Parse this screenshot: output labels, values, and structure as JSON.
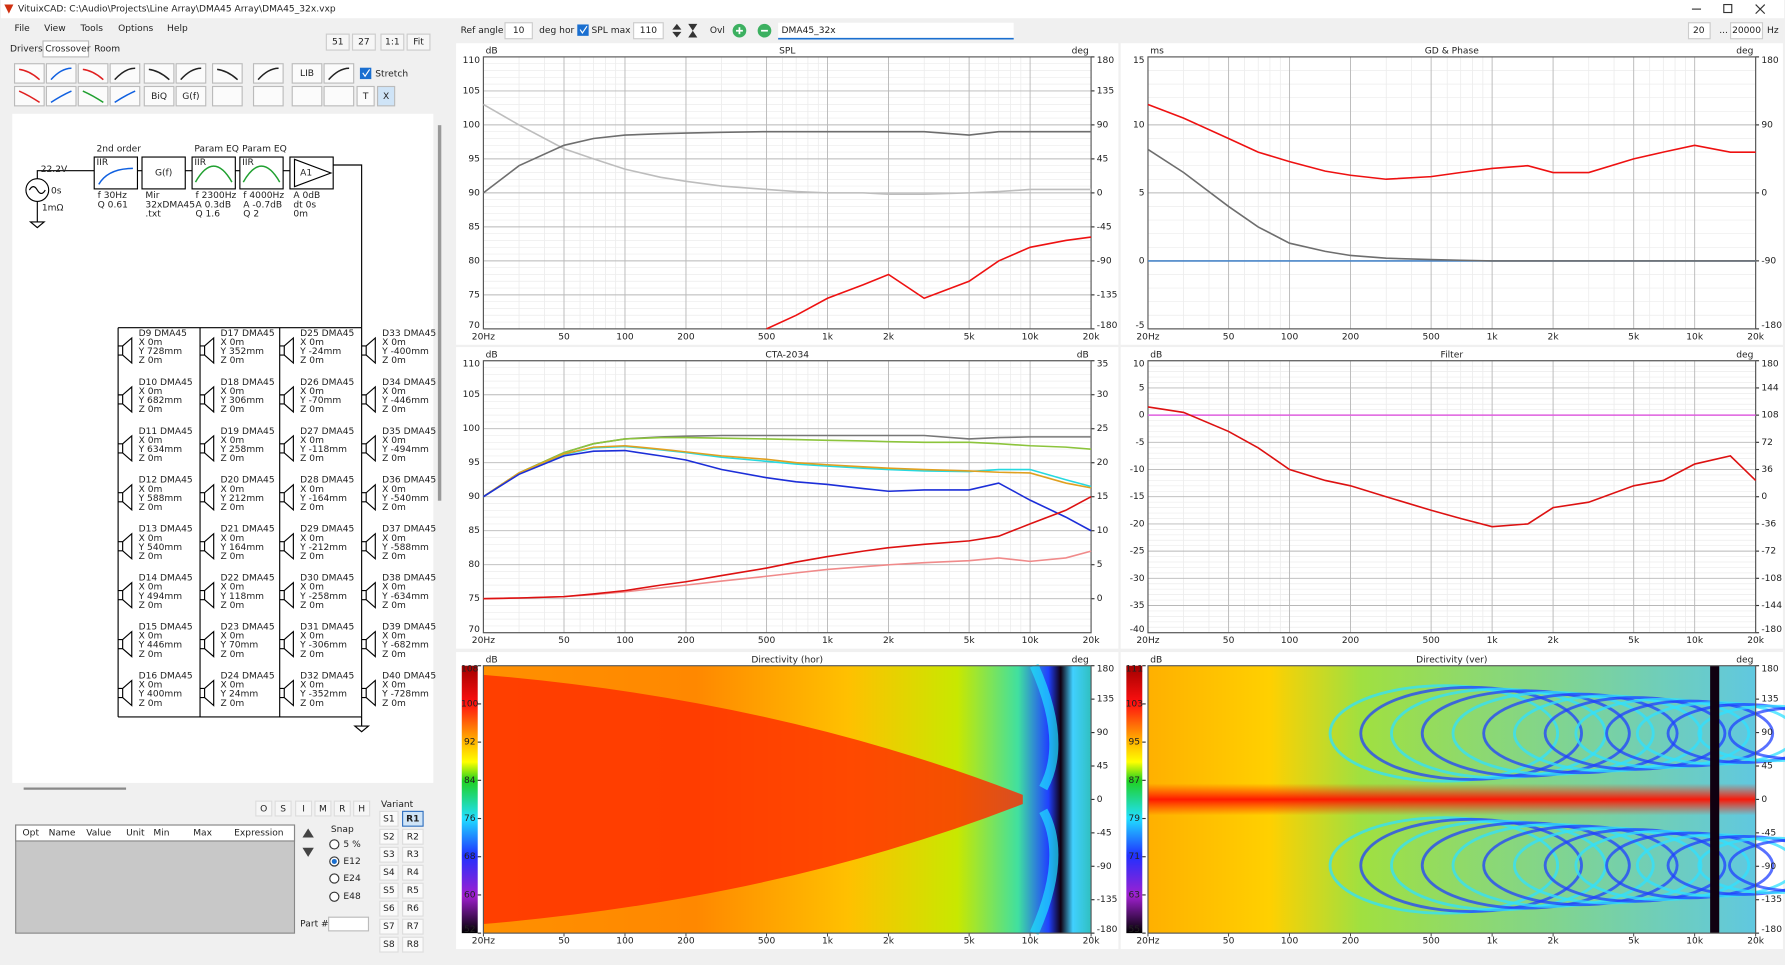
{
  "window": {
    "title": "VituixCAD: C:\\Audio\\Projects\\Line Array\\DMA45 Array\\DMA45_32x.vxp",
    "menu": [
      "File",
      "View",
      "Tools",
      "Options",
      "Help"
    ]
  },
  "left_panel": {
    "tabs": [
      "Drivers",
      "Crossover",
      "Room"
    ],
    "zoom_buttons": [
      "51",
      "27",
      "1:1",
      "Fit"
    ],
    "toolbar_labels": {
      "lib": "LIB",
      "biq": "BiQ",
      "gf": "G(f)",
      "t": "T",
      "x": "X"
    },
    "stretch": "Stretch",
    "source": {
      "voltage": "22.2V",
      "delay": "0s",
      "resistance": "1mΩ"
    },
    "blocks": [
      {
        "title": "2nd order",
        "type": "IIR",
        "params": [
          "f  30Hz",
          "Q  0.61"
        ]
      },
      {
        "type": "G(f)",
        "params": [
          "Mir",
          "32xDMA45",
          ".txt"
        ]
      },
      {
        "title": "Param EQ",
        "type": "IIR",
        "params": [
          "f  2300Hz",
          "A  0.3dB",
          "Q  1.6"
        ]
      },
      {
        "title": "Param EQ",
        "type": "IIR",
        "params": [
          "f  4000Hz",
          "A  -0.7dB",
          "Q  2"
        ]
      },
      {
        "type": "A1",
        "params": [
          "A  0dB",
          "dt 0s",
          "0m"
        ]
      }
    ],
    "drivers": [
      {
        "name": "D9 DMA45",
        "x": "X 0m",
        "y": "Y 728mm",
        "z": "Z 0m"
      },
      {
        "name": "D10 DMA45",
        "x": "X 0m",
        "y": "Y 682mm",
        "z": "Z 0m"
      },
      {
        "name": "D11 DMA45",
        "x": "X 0m",
        "y": "Y 634mm",
        "z": "Z 0m"
      },
      {
        "name": "D12 DMA45",
        "x": "X 0m",
        "y": "Y 588mm",
        "z": "Z 0m"
      },
      {
        "name": "D13 DMA45",
        "x": "X 0m",
        "y": "Y 540mm",
        "z": "Z 0m"
      },
      {
        "name": "D14 DMA45",
        "x": "X 0m",
        "y": "Y 494mm",
        "z": "Z 0m"
      },
      {
        "name": "D15 DMA45",
        "x": "X 0m",
        "y": "Y 446mm",
        "z": "Z 0m"
      },
      {
        "name": "D16 DMA45",
        "x": "X 0m",
        "y": "Y 400mm",
        "z": "Z 0m"
      },
      {
        "name": "D17 DMA45",
        "x": "X 0m",
        "y": "Y 352mm",
        "z": "Z 0m"
      },
      {
        "name": "D18 DMA45",
        "x": "X 0m",
        "y": "Y 306mm",
        "z": "Z 0m"
      },
      {
        "name": "D19 DMA45",
        "x": "X 0m",
        "y": "Y 258mm",
        "z": "Z 0m"
      },
      {
        "name": "D20 DMA45",
        "x": "X 0m",
        "y": "Y 212mm",
        "z": "Z 0m"
      },
      {
        "name": "D21 DMA45",
        "x": "X 0m",
        "y": "Y 164mm",
        "z": "Z 0m"
      },
      {
        "name": "D22 DMA45",
        "x": "X 0m",
        "y": "Y 118mm",
        "z": "Z 0m"
      },
      {
        "name": "D23 DMA45",
        "x": "X 0m",
        "y": "Y 70mm",
        "z": "Z 0m"
      },
      {
        "name": "D24 DMA45",
        "x": "X 0m",
        "y": "Y 24mm",
        "z": "Z 0m"
      },
      {
        "name": "D25 DMA45",
        "x": "X 0m",
        "y": "Y -24mm",
        "z": "Z 0m"
      },
      {
        "name": "D26 DMA45",
        "x": "X 0m",
        "y": "Y -70mm",
        "z": "Z 0m"
      },
      {
        "name": "D27 DMA45",
        "x": "X 0m",
        "y": "Y -118mm",
        "z": "Z 0m"
      },
      {
        "name": "D28 DMA45",
        "x": "X 0m",
        "y": "Y -164mm",
        "z": "Z 0m"
      },
      {
        "name": "D29 DMA45",
        "x": "X 0m",
        "y": "Y -212mm",
        "z": "Z 0m"
      },
      {
        "name": "D30 DMA45",
        "x": "X 0m",
        "y": "Y -258mm",
        "z": "Z 0m"
      },
      {
        "name": "D31 DMA45",
        "x": "X 0m",
        "y": "Y -306mm",
        "z": "Z 0m"
      },
      {
        "name": "D32 DMA45",
        "x": "X 0m",
        "y": "Y -352mm",
        "z": "Z 0m"
      },
      {
        "name": "D33 DMA45",
        "x": "X 0m",
        "y": "Y -400mm",
        "z": "Z 0m"
      },
      {
        "name": "D34 DMA45",
        "x": "X 0m",
        "y": "Y -446mm",
        "z": "Z 0m"
      },
      {
        "name": "D35 DMA45",
        "x": "X 0m",
        "y": "Y -494mm",
        "z": "Z 0m"
      },
      {
        "name": "D36 DMA45",
        "x": "X 0m",
        "y": "Y -540mm",
        "z": "Z 0m"
      },
      {
        "name": "D37 DMA45",
        "x": "X 0m",
        "y": "Y -588mm",
        "z": "Z 0m"
      },
      {
        "name": "D38 DMA45",
        "x": "X 0m",
        "y": "Y -634mm",
        "z": "Z 0m"
      },
      {
        "name": "D39 DMA45",
        "x": "X 0m",
        "y": "Y -682mm",
        "z": "Z 0m"
      },
      {
        "name": "D40 DMA45",
        "x": "X 0m",
        "y": "Y -728mm",
        "z": "Z 0m"
      }
    ],
    "param_buttons": [
      "O",
      "S",
      "I",
      "M",
      "R",
      "H"
    ],
    "param_columns": [
      "Opt",
      "Name",
      "Value",
      "Unit",
      "Min",
      "Max",
      "Expression"
    ],
    "snap": {
      "label": "Snap",
      "options": [
        "5 %",
        "E12",
        "E24",
        "E48"
      ],
      "selected": 1
    },
    "part_label": "Part #",
    "variant": {
      "label": "Variant",
      "s": [
        "S1",
        "S2",
        "S3",
        "S4",
        "S5",
        "S6",
        "S7",
        "S8"
      ],
      "r": [
        "R1",
        "R2",
        "R3",
        "R4",
        "R5",
        "R6",
        "R7",
        "R8"
      ],
      "selected": 0
    }
  },
  "top_bar": {
    "ref_angle_label": "Ref angle",
    "ref_angle": "10",
    "deg_hor": "deg hor",
    "spl_max_label": "SPL max",
    "spl_max": "110",
    "ovl": "Ovl",
    "project": "DMA45_32x",
    "freq_min": "20",
    "ellipsis": "...",
    "freq_max": "20000",
    "hz": "Hz"
  },
  "plots": [
    {
      "type": "line",
      "title": "SPL",
      "y_unit": "dB",
      "y2_unit": "deg",
      "xlim": [
        20,
        20000
      ],
      "xticks": [
        {
          "value": 20,
          "label": "20Hz"
        },
        50,
        100,
        200,
        500,
        {
          "value": 1000,
          "label": "1k"
        },
        {
          "value": 2000,
          "label": "2k"
        },
        {
          "value": 5000,
          "label": "5k"
        },
        {
          "value": 10000,
          "label": "10k"
        },
        {
          "value": 20000,
          "label": "20k"
        }
      ],
      "ylim": [
        70,
        110
      ],
      "yticks": [
        110,
        105,
        100,
        95,
        90,
        85,
        80,
        75,
        70
      ],
      "y2lim": [
        -180,
        180
      ],
      "y2ticks": [
        180,
        135,
        90,
        45,
        0,
        -45,
        -90,
        -135,
        -180
      ],
      "x": [
        20,
        30,
        50,
        70,
        100,
        150,
        200,
        300,
        500,
        700,
        1000,
        1500,
        2000,
        3000,
        5000,
        7000,
        10000,
        15000,
        20000
      ],
      "series": [
        {
          "color": "#bdbdbd",
          "values": [
            103,
            100,
            96.5,
            95,
            93.5,
            92.3,
            91.7,
            91,
            90.5,
            90.2,
            90,
            90,
            89.8,
            89.8,
            90,
            90.2,
            90.5,
            90.5,
            90.5
          ]
        },
        {
          "color": "#6e6e6e",
          "values": [
            90,
            94,
            97,
            98,
            98.5,
            98.7,
            98.8,
            98.9,
            99,
            99,
            99,
            99,
            99,
            99,
            98.5,
            99,
            99,
            99,
            99
          ]
        },
        {
          "color": "#ee1111",
          "values": [
            null,
            null,
            null,
            null,
            null,
            null,
            null,
            null,
            70,
            72,
            74.5,
            76.5,
            78,
            74.5,
            77,
            80,
            82,
            83,
            83.5
          ]
        }
      ]
    },
    {
      "type": "line",
      "title": "GD & Phase",
      "y_unit": "ms",
      "y2_unit": "deg",
      "xlim": [
        20,
        20000
      ],
      "xticks": [
        {
          "value": 20,
          "label": "20Hz"
        },
        50,
        100,
        200,
        500,
        {
          "value": 1000,
          "label": "1k"
        },
        {
          "value": 2000,
          "label": "2k"
        },
        {
          "value": 5000,
          "label": "5k"
        },
        {
          "value": 10000,
          "label": "10k"
        },
        {
          "value": 20000,
          "label": "20k"
        }
      ],
      "ylim": [
        -5,
        15
      ],
      "yticks": [
        15,
        10,
        5,
        0,
        -5
      ],
      "y2lim": [
        -180,
        180
      ],
      "y2ticks": [
        180,
        90,
        0,
        -90,
        -180
      ],
      "x": [
        20,
        30,
        50,
        70,
        100,
        150,
        200,
        300,
        500,
        700,
        1000,
        1500,
        2000,
        3000,
        5000,
        7000,
        10000,
        15000,
        20000
      ],
      "series": [
        {
          "color": "#4a86c8",
          "values": [
            0,
            0,
            0,
            0,
            0,
            0,
            0,
            0,
            0,
            0,
            0,
            0,
            0,
            0,
            0,
            0,
            0,
            0,
            0
          ]
        },
        {
          "color": "#6e6e6e",
          "values": [
            8.2,
            6.5,
            4,
            2.5,
            1.3,
            0.7,
            0.4,
            0.2,
            0.1,
            0.05,
            0,
            0,
            0,
            0,
            0,
            0,
            0,
            0,
            0
          ]
        },
        {
          "color": "#ee1111",
          "values": [
            11.5,
            10.5,
            9,
            8,
            7.3,
            6.6,
            6.3,
            6,
            6.2,
            6.5,
            6.8,
            7,
            6.5,
            6.5,
            7.5,
            8,
            8.5,
            8,
            8
          ]
        }
      ]
    },
    {
      "type": "line",
      "title": "CTA-2034",
      "y_unit": "dB",
      "y2_unit": "dB",
      "xlim": [
        20,
        20000
      ],
      "xticks": [
        {
          "value": 20,
          "label": "20Hz"
        },
        50,
        100,
        200,
        500,
        {
          "value": 1000,
          "label": "1k"
        },
        {
          "value": 2000,
          "label": "2k"
        },
        {
          "value": 5000,
          "label": "5k"
        },
        {
          "value": 10000,
          "label": "10k"
        },
        {
          "value": 20000,
          "label": "20k"
        }
      ],
      "ylim": [
        70,
        110
      ],
      "yticks": [
        110,
        105,
        100,
        95,
        90,
        85,
        80,
        75,
        70
      ],
      "y2lim": [
        -5,
        35
      ],
      "y2ticks": [
        35,
        30,
        25,
        20,
        15,
        10,
        5,
        0
      ],
      "x": [
        20,
        30,
        50,
        70,
        100,
        150,
        200,
        300,
        500,
        700,
        1000,
        1500,
        2000,
        3000,
        5000,
        7000,
        10000,
        15000,
        20000
      ],
      "series": [
        {
          "color": "#777777",
          "values": [
            90,
            93.5,
            96.5,
            97.8,
            98.5,
            98.8,
            98.9,
            99,
            99,
            99,
            99,
            99,
            99,
            99,
            98.5,
            98.7,
            98.8,
            98.8,
            98.8
          ]
        },
        {
          "color": "#8cc43c",
          "values": [
            90,
            93.5,
            96.5,
            97.8,
            98.5,
            98.7,
            98.7,
            98.6,
            98.5,
            98.4,
            98.3,
            98.2,
            98.1,
            98,
            98,
            97.8,
            97.5,
            97.3,
            97
          ]
        },
        {
          "color": "#26d9e0",
          "values": [
            90,
            93.4,
            96.2,
            97.2,
            97.4,
            96.9,
            96.5,
            95.8,
            95.2,
            94.8,
            94.5,
            94.2,
            94,
            93.8,
            93.7,
            94,
            94,
            92.5,
            91.5
          ]
        },
        {
          "color": "#e0a020",
          "values": [
            90,
            93.5,
            96.3,
            97.3,
            97.5,
            97,
            96.6,
            96,
            95.5,
            95,
            94.7,
            94.4,
            94.2,
            94,
            93.8,
            93.6,
            93.5,
            92,
            91.3
          ]
        },
        {
          "color": "#1c2ed8",
          "values": [
            90,
            93.3,
            96,
            96.7,
            96.8,
            96,
            95.4,
            94,
            92.8,
            92.2,
            91.8,
            91.2,
            90.8,
            91,
            91,
            92,
            89.5,
            87,
            85
          ]
        },
        {
          "color": "#f08a8a",
          "axis": "y2",
          "values": [
            0,
            0.1,
            0.3,
            0.6,
            1,
            1.6,
            2,
            2.6,
            3.3,
            3.8,
            4.3,
            4.7,
            5,
            5.3,
            5.6,
            6,
            5.5,
            6,
            7
          ]
        },
        {
          "color": "#dd1111",
          "axis": "y2",
          "values": [
            0,
            0.1,
            0.3,
            0.7,
            1.2,
            2,
            2.5,
            3.4,
            4.5,
            5.4,
            6.2,
            7,
            7.5,
            8,
            8.5,
            9.2,
            11,
            13,
            15
          ]
        }
      ]
    },
    {
      "type": "line",
      "title": "Filter",
      "y_unit": "dB",
      "y2_unit": "deg",
      "xlim": [
        20,
        20000
      ],
      "xticks": [
        {
          "value": 20,
          "label": "20Hz"
        },
        50,
        100,
        200,
        500,
        {
          "value": 1000,
          "label": "1k"
        },
        {
          "value": 2000,
          "label": "2k"
        },
        {
          "value": 5000,
          "label": "5k"
        },
        {
          "value": 10000,
          "label": "10k"
        },
        {
          "value": 20000,
          "label": "20k"
        }
      ],
      "ylim": [
        -40,
        10
      ],
      "yticks": [
        10,
        5,
        0,
        -5,
        -10,
        -15,
        -20,
        -25,
        -30,
        -35,
        -40
      ],
      "y2lim": [
        -180,
        180
      ],
      "y2ticks": [
        180,
        144,
        108,
        72,
        36,
        0,
        -36,
        -72,
        -108,
        -144,
        -180
      ],
      "x": [
        20,
        30,
        50,
        70,
        100,
        150,
        200,
        300,
        500,
        700,
        1000,
        1500,
        2000,
        3000,
        5000,
        7000,
        10000,
        15000,
        20000
      ],
      "series": [
        {
          "color": "#e060e0",
          "values": [
            0,
            0,
            0,
            0,
            0,
            0,
            0,
            0,
            0,
            0,
            0,
            0,
            0,
            0,
            0,
            0,
            0,
            0,
            0
          ]
        },
        {
          "color": "#dd1111",
          "values": [
            1.5,
            0.5,
            -3,
            -6,
            -10,
            -12,
            -13,
            -15,
            -17.5,
            -19,
            -20.5,
            -20,
            -17,
            -16,
            -13,
            -12,
            -9,
            -7.5,
            -12
          ]
        }
      ]
    },
    {
      "type": "heatmap",
      "title": "Directivity (hor)",
      "y_unit": "dB",
      "y2_unit": "deg",
      "variant": "hor",
      "xlim": [
        20,
        20000
      ],
      "xticks": [
        {
          "value": 20,
          "label": "20Hz"
        },
        50,
        100,
        200,
        500,
        {
          "value": 1000,
          "label": "1k"
        },
        {
          "value": 2000,
          "label": "2k"
        },
        {
          "value": 5000,
          "label": "5k"
        },
        {
          "value": 10000,
          "label": "10k"
        },
        {
          "value": 20000,
          "label": "20k"
        }
      ],
      "ylim": [
        52,
        108
      ],
      "yticks": [
        108,
        100,
        92,
        84,
        76,
        68,
        60,
        52
      ],
      "y2lim": [
        -180,
        180
      ],
      "y2ticks": [
        180,
        135,
        90,
        45,
        0,
        -45,
        -90,
        -135,
        -180
      ]
    },
    {
      "type": "heatmap",
      "title": "Directivity (ver)",
      "y_unit": "dB",
      "y2_unit": "deg",
      "variant": "ver",
      "xlim": [
        20,
        20000
      ],
      "xticks": [
        {
          "value": 20,
          "label": "20Hz"
        },
        50,
        100,
        200,
        500,
        {
          "value": 1000,
          "label": "1k"
        },
        {
          "value": 2000,
          "label": "2k"
        },
        {
          "value": 5000,
          "label": "5k"
        },
        {
          "value": 10000,
          "label": "10k"
        },
        {
          "value": 20000,
          "label": "20k"
        }
      ],
      "ylim": [
        55,
        111
      ],
      "yticks": [
        111,
        103,
        95,
        87,
        79,
        71,
        63,
        55
      ],
      "y2lim": [
        -180,
        180
      ],
      "y2ticks": [
        180,
        135,
        90,
        45,
        0,
        -45,
        -90,
        -135,
        -180
      ]
    }
  ]
}
